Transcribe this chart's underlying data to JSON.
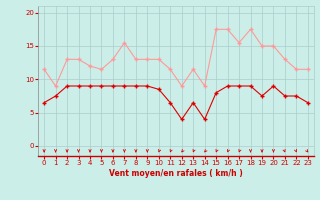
{
  "hours": [
    0,
    1,
    2,
    3,
    4,
    5,
    6,
    7,
    8,
    9,
    10,
    11,
    12,
    13,
    14,
    15,
    16,
    17,
    18,
    19,
    20,
    21,
    22,
    23
  ],
  "vent_moyen": [
    6.5,
    7.5,
    9.0,
    9.0,
    9.0,
    9.0,
    9.0,
    9.0,
    9.0,
    9.0,
    8.5,
    6.5,
    4.0,
    6.5,
    4.0,
    8.0,
    9.0,
    9.0,
    9.0,
    7.5,
    9.0,
    7.5,
    7.5,
    6.5
  ],
  "rafales": [
    11.5,
    9.0,
    13.0,
    13.0,
    12.0,
    11.5,
    13.0,
    15.5,
    13.0,
    13.0,
    13.0,
    11.5,
    9.0,
    11.5,
    9.0,
    17.5,
    17.5,
    15.5,
    17.5,
    15.0,
    15.0,
    13.0,
    11.5,
    11.5
  ],
  "vent_moyen_color": "#dd0000",
  "rafales_color": "#ff9999",
  "bg_color": "#cceee8",
  "grid_color": "#aacccc",
  "axis_color": "#cc0000",
  "xlabel": "Vent moyen/en rafales ( km/h )",
  "ylim": [
    -1.5,
    21
  ],
  "yticks": [
    0,
    5,
    10,
    15,
    20
  ],
  "xticks": [
    0,
    1,
    2,
    3,
    4,
    5,
    6,
    7,
    8,
    9,
    10,
    11,
    12,
    13,
    14,
    15,
    16,
    17,
    18,
    19,
    20,
    21,
    22,
    23
  ],
  "arrow_angles": [
    270,
    270,
    270,
    270,
    270,
    270,
    270,
    270,
    270,
    270,
    260,
    260,
    250,
    260,
    250,
    260,
    260,
    260,
    270,
    270,
    270,
    280,
    280,
    290
  ]
}
